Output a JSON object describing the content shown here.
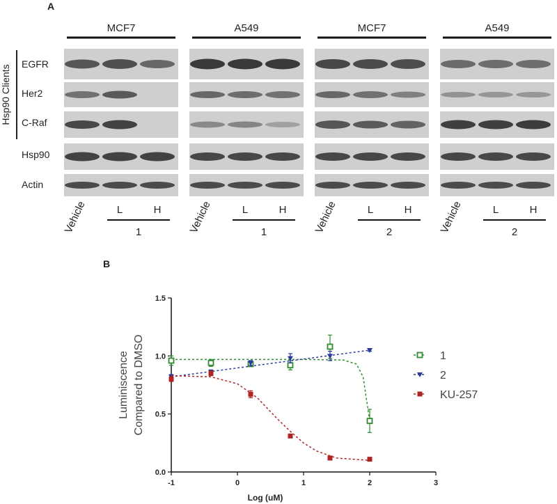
{
  "panel_a": {
    "label": "A",
    "side_label": "Hsp90 Clients",
    "row_labels": [
      "EGFR",
      "Her2",
      "C-Raf",
      "Hsp90",
      "Actin"
    ],
    "groups": [
      {
        "cell_line": "MCF7",
        "lane_labels": [
          "Vehicle",
          "L",
          "H"
        ],
        "compound": "1",
        "bands": {
          "EGFR": [
            0.75,
            0.78,
            0.62
          ],
          "Her2": [
            0.55,
            0.72,
            0.0
          ],
          "C-Raf": [
            0.85,
            0.88,
            0.0
          ],
          "Hsp90": [
            0.88,
            0.88,
            0.88
          ],
          "Actin": [
            0.82,
            0.82,
            0.82
          ]
        }
      },
      {
        "cell_line": "A549",
        "lane_labels": [
          "Vehicle",
          "L",
          "H"
        ],
        "compound": "1",
        "bands": {
          "EGFR": [
            0.95,
            0.95,
            0.95
          ],
          "Her2": [
            0.62,
            0.58,
            0.55
          ],
          "C-Raf": [
            0.38,
            0.42,
            0.22
          ],
          "Hsp90": [
            0.85,
            0.85,
            0.85
          ],
          "Actin": [
            0.82,
            0.82,
            0.82
          ]
        }
      },
      {
        "cell_line": "MCF7",
        "lane_labels": [
          "Vehicle",
          "L",
          "H"
        ],
        "compound": "2",
        "bands": {
          "EGFR": [
            0.85,
            0.82,
            0.8
          ],
          "Her2": [
            0.62,
            0.55,
            0.45
          ],
          "C-Raf": [
            0.75,
            0.72,
            0.65
          ],
          "Hsp90": [
            0.85,
            0.85,
            0.85
          ],
          "Actin": [
            0.82,
            0.82,
            0.82
          ]
        }
      },
      {
        "cell_line": "A549",
        "lane_labels": [
          "Vehicle",
          "L",
          "H"
        ],
        "compound": "2",
        "bands": {
          "EGFR": [
            0.6,
            0.58,
            0.58
          ],
          "Her2": [
            0.32,
            0.3,
            0.28
          ],
          "C-Raf": [
            0.9,
            0.9,
            0.92
          ],
          "Hsp90": [
            0.85,
            0.85,
            0.85
          ],
          "Actin": [
            0.82,
            0.82,
            0.82
          ]
        }
      }
    ]
  },
  "panel_b": {
    "label": "B"
  },
  "chart_data": {
    "type": "scatter",
    "xlabel": "Log (uM)",
    "ylabel_lines": [
      "Luminiscence",
      "Compared to DMSO"
    ],
    "xlim": [
      -1,
      3
    ],
    "ylim": [
      0.0,
      1.5
    ],
    "xticks": [
      "-1",
      "0",
      "1",
      "2",
      "3"
    ],
    "yticks": [
      "0.0",
      "0.5",
      "1.0",
      "1.5"
    ],
    "legend_placement": "right",
    "series": [
      {
        "name": "1",
        "color": "#2e8b2e",
        "marker": "square-open",
        "x": [
          -1.0,
          -0.4,
          0.2,
          0.8,
          1.4,
          2.0
        ],
        "y": [
          0.96,
          0.94,
          0.93,
          0.92,
          1.08,
          0.44
        ],
        "err": [
          0.04,
          0.03,
          0.02,
          0.04,
          0.1,
          0.1
        ],
        "fit_x": [
          -1.0,
          1.0,
          1.6,
          1.8,
          1.9,
          2.0
        ],
        "fit_y": [
          0.97,
          0.97,
          0.965,
          0.93,
          0.82,
          0.44
        ]
      },
      {
        "name": "2",
        "color": "#2a3a9a",
        "marker": "triangle-down",
        "x": [
          -1.0,
          -0.4,
          0.2,
          0.8,
          1.4,
          2.0
        ],
        "y": [
          0.82,
          0.86,
          0.94,
          0.98,
          1.0,
          1.05
        ],
        "err": [
          0.02,
          0.02,
          0.02,
          0.04,
          0.04,
          0.01
        ],
        "fit_x": [
          -1.0,
          2.0
        ],
        "fit_y": [
          0.82,
          1.05
        ]
      },
      {
        "name": "KU-257",
        "color": "#b22222",
        "marker": "square",
        "x": [
          -1.0,
          -0.4,
          0.2,
          0.8,
          1.4,
          2.0
        ],
        "y": [
          0.8,
          0.85,
          0.67,
          0.31,
          0.12,
          0.11
        ],
        "err": [
          0.02,
          0.02,
          0.03,
          0.01,
          0.01,
          0.01
        ],
        "fit_x": [
          -1.0,
          -0.4,
          0.0,
          0.3,
          0.6,
          0.8,
          1.0,
          1.2,
          1.5,
          2.0
        ],
        "fit_y": [
          0.83,
          0.82,
          0.76,
          0.64,
          0.46,
          0.35,
          0.25,
          0.18,
          0.12,
          0.1
        ]
      }
    ]
  }
}
